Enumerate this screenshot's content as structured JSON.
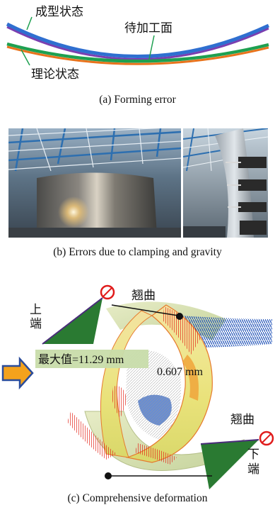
{
  "panel_a": {
    "label_formed": "成型状态",
    "label_surface": "待加工面",
    "label_theory": "理论状态",
    "caption": "(a)  Forming error"
  },
  "panel_b": {
    "caption": "(b)  Errors due to clamping and gravity"
  },
  "panel_c": {
    "label_upper_1": "上",
    "label_upper_2": "端",
    "label_warp_top": "翘曲",
    "label_max": "最大值=11.29 mm",
    "label_value": "0.607 mm",
    "label_warp_bottom": "翘曲",
    "label_lower_1": "下",
    "label_lower_2": "端",
    "caption": "(c)  Comprehensive deformation"
  },
  "colors": {
    "blue_curve": "#2f6fd0",
    "purple_curve": "#7a3fb0",
    "green_curve": "#1ea050",
    "orange_curve": "#e8731c",
    "highlight_green": "#c8dcaa",
    "arrow_orange": "#f4a21c",
    "arrow_blue": "#2a4c9a",
    "warning_red": "#e01b1b"
  }
}
